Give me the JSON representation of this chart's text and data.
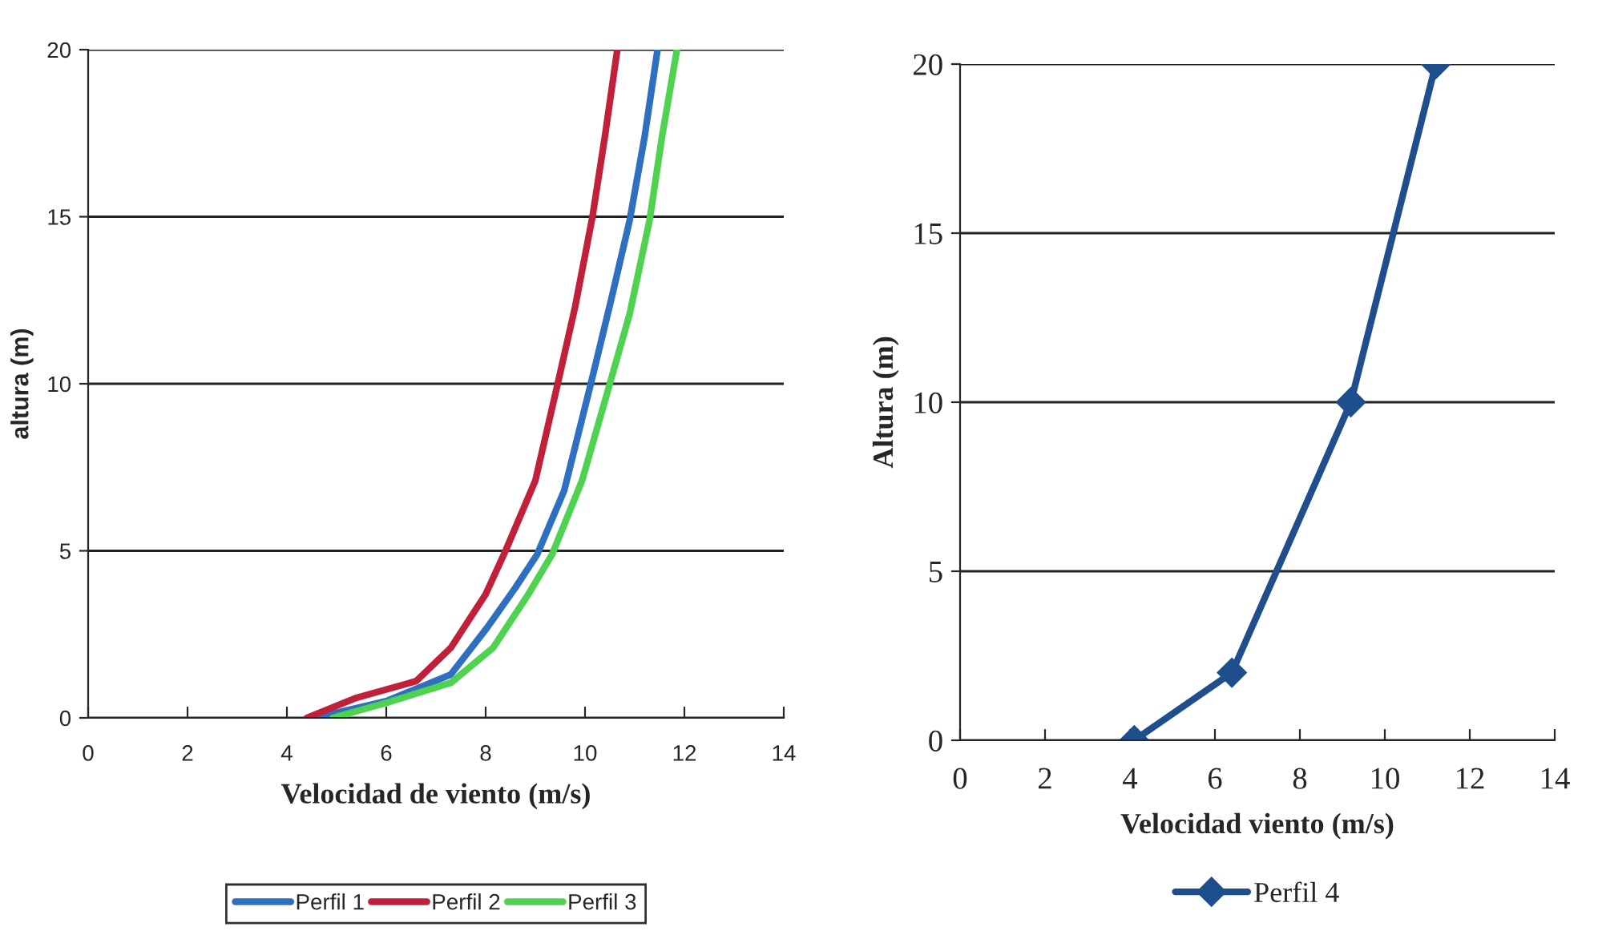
{
  "chart_data": [
    {
      "type": "line",
      "xlabel": "Velocidad de viento (m/s)",
      "ylabel": "altura (m)",
      "xlim": [
        0,
        14
      ],
      "ylim": [
        0,
        20
      ],
      "xticks": [
        0,
        2,
        4,
        6,
        8,
        10,
        12,
        14
      ],
      "yticks": [
        0,
        5,
        10,
        15,
        20
      ],
      "grid": "y",
      "legend": "bottom",
      "marker": "none",
      "line_style": "solid",
      "series": [
        {
          "name": "Perfil 1",
          "color": "#2e6fc0",
          "x": [
            4.56,
            6.0,
            7.3,
            8.03,
            8.6,
            9.04,
            9.58,
            10.1,
            10.54,
            10.9,
            11.2,
            11.46
          ],
          "values": [
            0,
            0.5,
            1.3,
            2.7,
            3.9,
            4.9,
            6.8,
            9.9,
            12.6,
            14.9,
            17.4,
            20
          ]
        },
        {
          "name": "Perfil 2",
          "color": "#c0203a",
          "x": [
            4.4,
            5.4,
            6.6,
            7.3,
            8.0,
            8.4,
            9.0,
            9.45,
            9.8,
            10.15,
            10.4,
            10.65
          ],
          "values": [
            0,
            0.6,
            1.1,
            2.1,
            3.7,
            5,
            7.1,
            10,
            12.3,
            15,
            17.4,
            20
          ]
        },
        {
          "name": "Perfil 3",
          "color": "#4fd24f",
          "x": [
            4.92,
            6.0,
            7.3,
            8.15,
            8.86,
            9.34,
            9.94,
            10.48,
            10.9,
            11.3,
            11.55,
            11.85
          ],
          "values": [
            0,
            0.45,
            1.05,
            2.1,
            3.7,
            4.9,
            7.1,
            9.9,
            12.1,
            14.9,
            17.4,
            20
          ]
        }
      ]
    },
    {
      "type": "line",
      "xlabel": "Velocidad viento (m/s)",
      "ylabel": "Altura (m)",
      "xlim": [
        0,
        14
      ],
      "ylim": [
        0,
        20
      ],
      "xticks": [
        0,
        2,
        4,
        6,
        8,
        10,
        12,
        14
      ],
      "yticks": [
        0,
        5,
        10,
        15,
        20
      ],
      "grid": "y",
      "legend": "bottom",
      "marker": "diamond",
      "line_style": "solid",
      "series": [
        {
          "name": "Perfil 4",
          "color": "#1f4e8c",
          "x": [
            4.1,
            6.4,
            9.2,
            11.2
          ],
          "values": [
            0,
            2,
            10,
            20
          ]
        }
      ]
    }
  ]
}
